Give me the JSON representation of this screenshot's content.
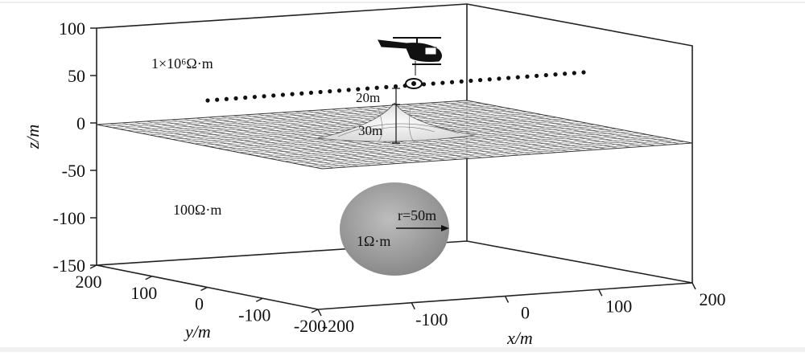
{
  "axes": {
    "z": {
      "label": "z/m",
      "ticks": [
        "100",
        "50",
        "0",
        "-50",
        "-100",
        "-150"
      ]
    },
    "y": {
      "label": "y/m",
      "ticks": [
        "200",
        "100",
        "0",
        "-100",
        "-200"
      ]
    },
    "x": {
      "label": "x/m",
      "ticks": [
        "-200",
        "-100",
        "0",
        "100",
        "200"
      ]
    }
  },
  "annotations": {
    "air_resistivity": "1×10⁶Ω·m",
    "flight_height": "20m",
    "hill_height": "30m",
    "ground_resistivity": "100Ω·m",
    "sphere_radius": "r=50m",
    "sphere_resistivity": "1Ω·m"
  }
}
